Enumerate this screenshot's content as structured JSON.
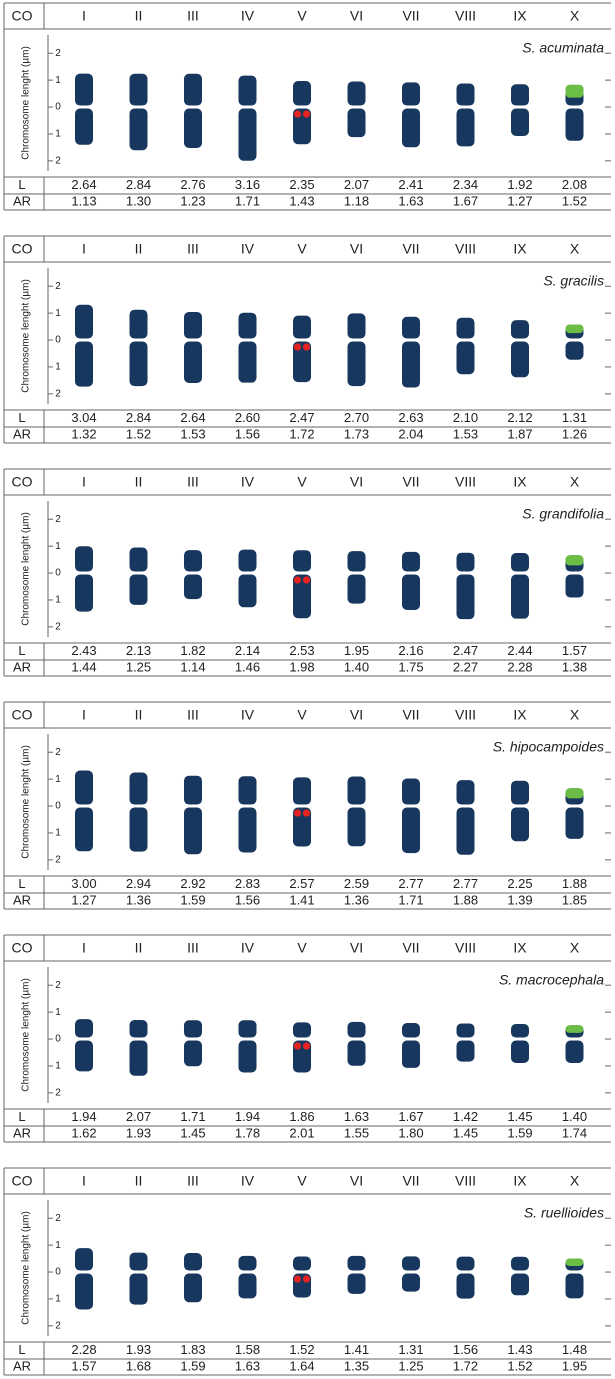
{
  "chart_data": [
    {
      "type": "ideogram",
      "title": "S. acuminata",
      "header": "CO",
      "ylabel": "Chromosome lenght (µm)",
      "categories": [
        "I",
        "II",
        "III",
        "IV",
        "V",
        "VI",
        "VII",
        "VIII",
        "IX",
        "X"
      ],
      "series": [
        {
          "name": "L",
          "values": [
            2.64,
            2.84,
            2.76,
            3.16,
            2.35,
            2.07,
            2.41,
            2.34,
            1.92,
            2.08
          ],
          "value_labels": [
            "2.64",
            "2.84",
            "2.76",
            "3.16",
            "2.35",
            "2.07",
            "2.41",
            "2.34",
            "1.92",
            "2.08"
          ]
        },
        {
          "name": "AR",
          "values": [
            1.13,
            1.3,
            1.23,
            1.71,
            1.43,
            1.18,
            1.63,
            1.67,
            1.27,
            1.52
          ],
          "value_labels": [
            "1.13",
            "1.30",
            "1.23",
            "1.71",
            "1.43",
            "1.18",
            "1.63",
            "1.67",
            "1.27",
            "1.52"
          ]
        }
      ],
      "ylim": [
        -2.6,
        2.9
      ],
      "yticks": [
        2,
        1,
        0,
        {
          "value": -1,
          "label": "1"
        },
        {
          "value": -2,
          "label": "2"
        }
      ],
      "color": "#17375e",
      "signal_colors": [
        "#e52421",
        "#6cbd45"
      ]
    },
    {
      "type": "ideogram",
      "title": "S. gracilis",
      "header": "CO",
      "ylabel": "Chromosome lenght (µm)",
      "categories": [
        "I",
        "II",
        "III",
        "IV",
        "V",
        "VI",
        "VII",
        "VIII",
        "IX",
        "X"
      ],
      "series": [
        {
          "name": "L",
          "values": [
            3.04,
            2.84,
            2.64,
            2.6,
            2.47,
            2.7,
            2.63,
            2.1,
            2.12,
            1.31
          ],
          "value_labels": [
            "3.04",
            "2.84",
            "2.64",
            "2.60",
            "2.47",
            "2.70",
            "2.63",
            "2.10",
            "2.12",
            "1.31"
          ]
        },
        {
          "name": "AR",
          "values": [
            1.32,
            1.52,
            1.53,
            1.56,
            1.72,
            1.73,
            2.04,
            1.53,
            1.87,
            1.26
          ],
          "value_labels": [
            "1.32",
            "1.52",
            "1.53",
            "1.56",
            "1.72",
            "1.73",
            "2.04",
            "1.53",
            "1.87",
            "1.26"
          ]
        }
      ],
      "ylim": [
        -2.6,
        2.9
      ],
      "yticks": [
        2,
        1,
        0,
        {
          "value": -1,
          "label": "1"
        },
        {
          "value": -2,
          "label": "2"
        }
      ],
      "color": "#17375e",
      "signal_colors": [
        "#e52421",
        "#6cbd45"
      ]
    },
    {
      "type": "ideogram",
      "title": "S. grandifolia",
      "header": "CO",
      "ylabel": "Chromosome lenght (µm)",
      "categories": [
        "I",
        "II",
        "III",
        "IV",
        "V",
        "VI",
        "VII",
        "VIII",
        "IX",
        "X"
      ],
      "series": [
        {
          "name": "L",
          "values": [
            2.43,
            2.13,
            1.82,
            2.14,
            2.53,
            1.95,
            2.16,
            2.47,
            2.44,
            1.57
          ],
          "value_labels": [
            "2.43",
            "2.13",
            "1.82",
            "2.14",
            "2.53",
            "1.95",
            "2.16",
            "2.47",
            "2.44",
            "1.57"
          ]
        },
        {
          "name": "AR",
          "values": [
            1.44,
            1.25,
            1.14,
            1.46,
            1.98,
            1.4,
            1.75,
            2.27,
            2.28,
            1.38
          ],
          "value_labels": [
            "1.44",
            "1.25",
            "1.14",
            "1.46",
            "1.98",
            "1.40",
            "1.75",
            "2.27",
            "2.28",
            "1.38"
          ]
        }
      ],
      "ylim": [
        -2.6,
        2.9
      ],
      "yticks": [
        2,
        1,
        0,
        {
          "value": -1,
          "label": "1"
        },
        {
          "value": -2,
          "label": "2"
        }
      ],
      "color": "#17375e",
      "signal_colors": [
        "#e52421",
        "#6cbd45"
      ]
    },
    {
      "type": "ideogram",
      "title": "S. hipocampoides",
      "header": "CO",
      "ylabel": "Chromosome lenght (µm)",
      "categories": [
        "I",
        "II",
        "III",
        "IV",
        "V",
        "VI",
        "VII",
        "VIII",
        "IX",
        "X"
      ],
      "series": [
        {
          "name": "L",
          "values": [
            3.0,
            2.94,
            2.92,
            2.83,
            2.57,
            2.59,
            2.77,
            2.77,
            2.25,
            1.88
          ],
          "value_labels": [
            "3.00",
            "2.94",
            "2.92",
            "2.83",
            "2.57",
            "2.59",
            "2.77",
            "2.77",
            "2.25",
            "1.88"
          ]
        },
        {
          "name": "AR",
          "values": [
            1.27,
            1.36,
            1.59,
            1.56,
            1.41,
            1.36,
            1.71,
            1.88,
            1.39,
            1.85
          ],
          "value_labels": [
            "1.27",
            "1.36",
            "1.59",
            "1.56",
            "1.41",
            "1.36",
            "1.71",
            "1.88",
            "1.39",
            "1.85"
          ]
        }
      ],
      "ylim": [
        -2.6,
        2.9
      ],
      "yticks": [
        2,
        1,
        0,
        {
          "value": -1,
          "label": "1"
        },
        {
          "value": -2,
          "label": "2"
        }
      ],
      "color": "#17375e",
      "signal_colors": [
        "#e52421",
        "#6cbd45"
      ]
    },
    {
      "type": "ideogram",
      "title": "S. macrocephala",
      "header": "CO",
      "ylabel": "Chromosome lenght (µm)",
      "categories": [
        "I",
        "II",
        "III",
        "IV",
        "V",
        "VI",
        "VII",
        "VIII",
        "IX",
        "X"
      ],
      "series": [
        {
          "name": "L",
          "values": [
            1.94,
            2.07,
            1.71,
            1.94,
            1.86,
            1.63,
            1.67,
            1.42,
            1.45,
            1.4
          ],
          "value_labels": [
            "1.94",
            "2.07",
            "1.71",
            "1.94",
            "1.86",
            "1.63",
            "1.67",
            "1.42",
            "1.45",
            "1.40"
          ]
        },
        {
          "name": "AR",
          "values": [
            1.62,
            1.93,
            1.45,
            1.78,
            2.01,
            1.55,
            1.8,
            1.45,
            1.59,
            1.74
          ],
          "value_labels": [
            "1.62",
            "1.93",
            "1.45",
            "1.78",
            "2.01",
            "1.55",
            "1.80",
            "1.45",
            "1.59",
            "1.74"
          ]
        }
      ],
      "ylim": [
        -2.6,
        2.9
      ],
      "yticks": [
        2,
        1,
        0,
        {
          "value": -1,
          "label": "1"
        },
        {
          "value": -2,
          "label": "2"
        }
      ],
      "color": "#17375e",
      "signal_colors": [
        "#e52421",
        "#6cbd45"
      ]
    },
    {
      "type": "ideogram",
      "title": "S. ruellioides",
      "header": "CO",
      "ylabel": "Chromosome lenght (µm)",
      "categories": [
        "I",
        "II",
        "III",
        "IV",
        "V",
        "VI",
        "VII",
        "VIII",
        "IX",
        "X"
      ],
      "series": [
        {
          "name": "L",
          "values": [
            2.28,
            1.93,
            1.83,
            1.58,
            1.52,
            1.41,
            1.31,
            1.56,
            1.43,
            1.48
          ],
          "value_labels": [
            "2.28",
            "1.93",
            "1.83",
            "1.58",
            "1.52",
            "1.41",
            "1.31",
            "1.56",
            "1.43",
            "1.48"
          ]
        },
        {
          "name": "AR",
          "values": [
            1.57,
            1.68,
            1.59,
            1.63,
            1.64,
            1.35,
            1.25,
            1.72,
            1.52,
            1.95
          ],
          "value_labels": [
            "1.57",
            "1.68",
            "1.59",
            "1.63",
            "1.64",
            "1.35",
            "1.25",
            "1.72",
            "1.52",
            "1.95"
          ]
        }
      ],
      "ylim": [
        -2.6,
        2.9
      ],
      "yticks": [
        2,
        1,
        0,
        {
          "value": -1,
          "label": "1"
        },
        {
          "value": -2,
          "label": "2"
        }
      ],
      "color": "#17375e",
      "signal_colors": [
        "#e52421",
        "#6cbd45"
      ]
    }
  ]
}
